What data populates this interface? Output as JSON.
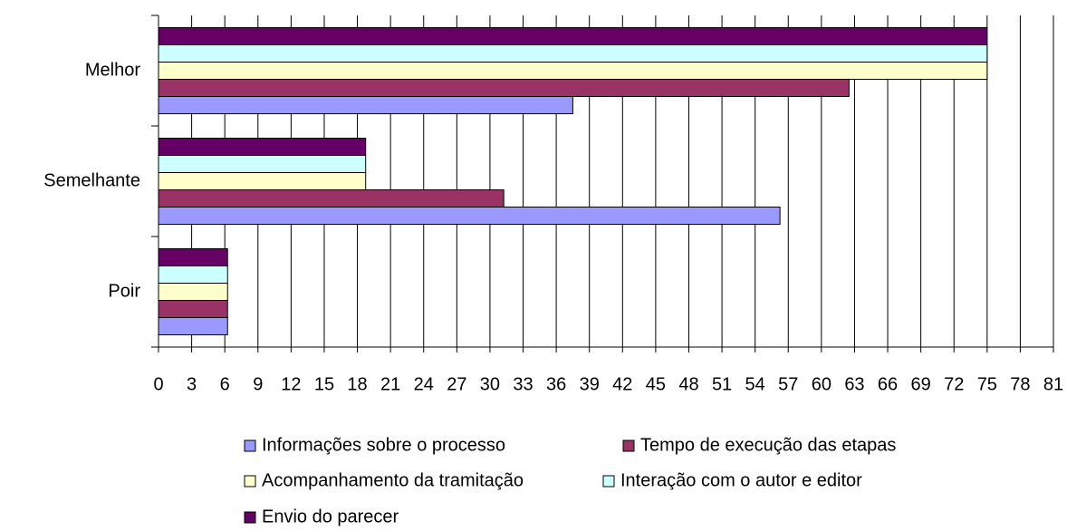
{
  "chart_data": {
    "type": "hbar",
    "categories": [
      "Melhor",
      "Semelhante",
      "Poir"
    ],
    "series": [
      {
        "name": "Informações sobre o processo",
        "color": "#9999ff",
        "values": [
          37.5,
          56.25,
          6.25
        ]
      },
      {
        "name": "Tempo de execução das etapas",
        "color": "#993366",
        "values": [
          62.5,
          31.25,
          6.25
        ]
      },
      {
        "name": "Acompanhamento da tramitação",
        "color": "#ffffcc",
        "values": [
          75,
          18.75,
          6.25
        ]
      },
      {
        "name": "Interação com o autor e editor",
        "color": "#ccffff",
        "values": [
          75,
          18.75,
          6.25
        ]
      },
      {
        "name": "Envio do parecer",
        "color": "#660066",
        "values": [
          75,
          18.75,
          6.25
        ]
      }
    ],
    "xlim": [
      0,
      81
    ],
    "xticks": [
      0,
      3,
      6,
      9,
      12,
      15,
      18,
      21,
      24,
      27,
      30,
      33,
      36,
      39,
      42,
      45,
      48,
      51,
      54,
      57,
      60,
      63,
      66,
      69,
      72,
      75,
      78,
      81
    ],
    "grid": true
  }
}
